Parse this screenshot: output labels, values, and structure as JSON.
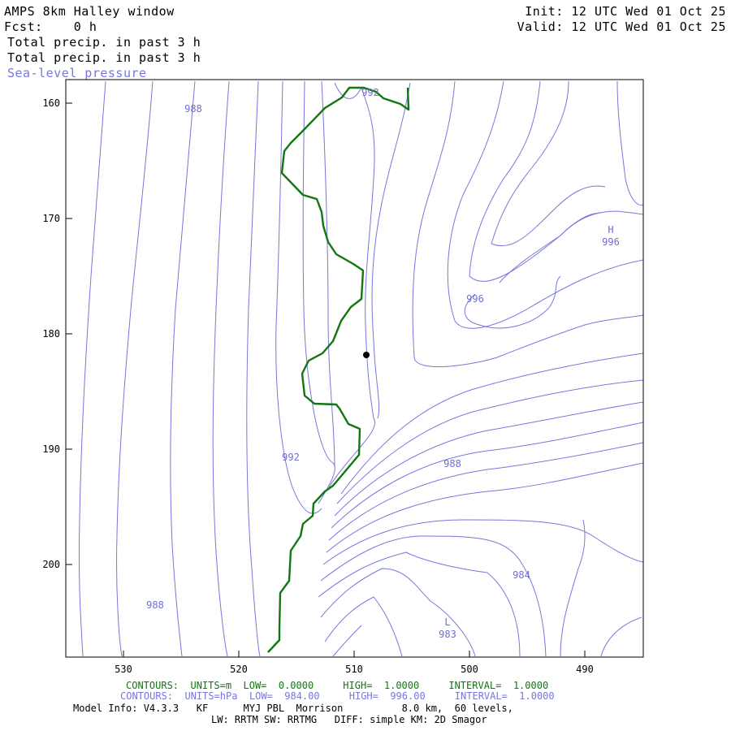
{
  "header": {
    "title": "AMPS 8km Halley window",
    "fcst_label": "Fcst:",
    "fcst_value": "0 h",
    "init": "Init: 12 UTC Wed 01 Oct 25",
    "valid": "Valid: 12 UTC Wed 01 Oct 25",
    "field1": "Total precip. in past 3 h",
    "field2": "Total precip. in past 3 h",
    "field3": "Sea-level pressure"
  },
  "axes": {
    "x_ticks": [
      "530",
      "520",
      "510",
      "500",
      "490"
    ],
    "y_ticks": [
      "160",
      "170",
      "180",
      "190",
      "200"
    ]
  },
  "contour_labels": {
    "l988_top": "988",
    "l992_top": "992",
    "h_mark": "H",
    "h_value": "996",
    "l996_mid": "996",
    "l992_mid": "992",
    "l988_mid": "988",
    "l988_bottom": "988",
    "l984": "984",
    "l_mark": "L",
    "l_value": "983"
  },
  "footer": {
    "green_contours": "CONTOURS:  UNITS=m  LOW=  0.0000     HIGH=  1.0000     INTERVAL=  1.0000",
    "blue_contours": "CONTOURS:  UNITS=hPa  LOW=  984.00     HIGH=  996.00     INTERVAL=  1.0000",
    "model_info": "Model Info: V4.3.3   KF      MYJ PBL  Morrison          8.0 km,  60 levels,",
    "model_info2": "LW: RRTM SW: RRTMG   DIFF: simple KM: 2D Smagor"
  },
  "colors": {
    "precip_contour": "#117711",
    "pressure_contour": "#7777dd",
    "frame": "#000000"
  }
}
